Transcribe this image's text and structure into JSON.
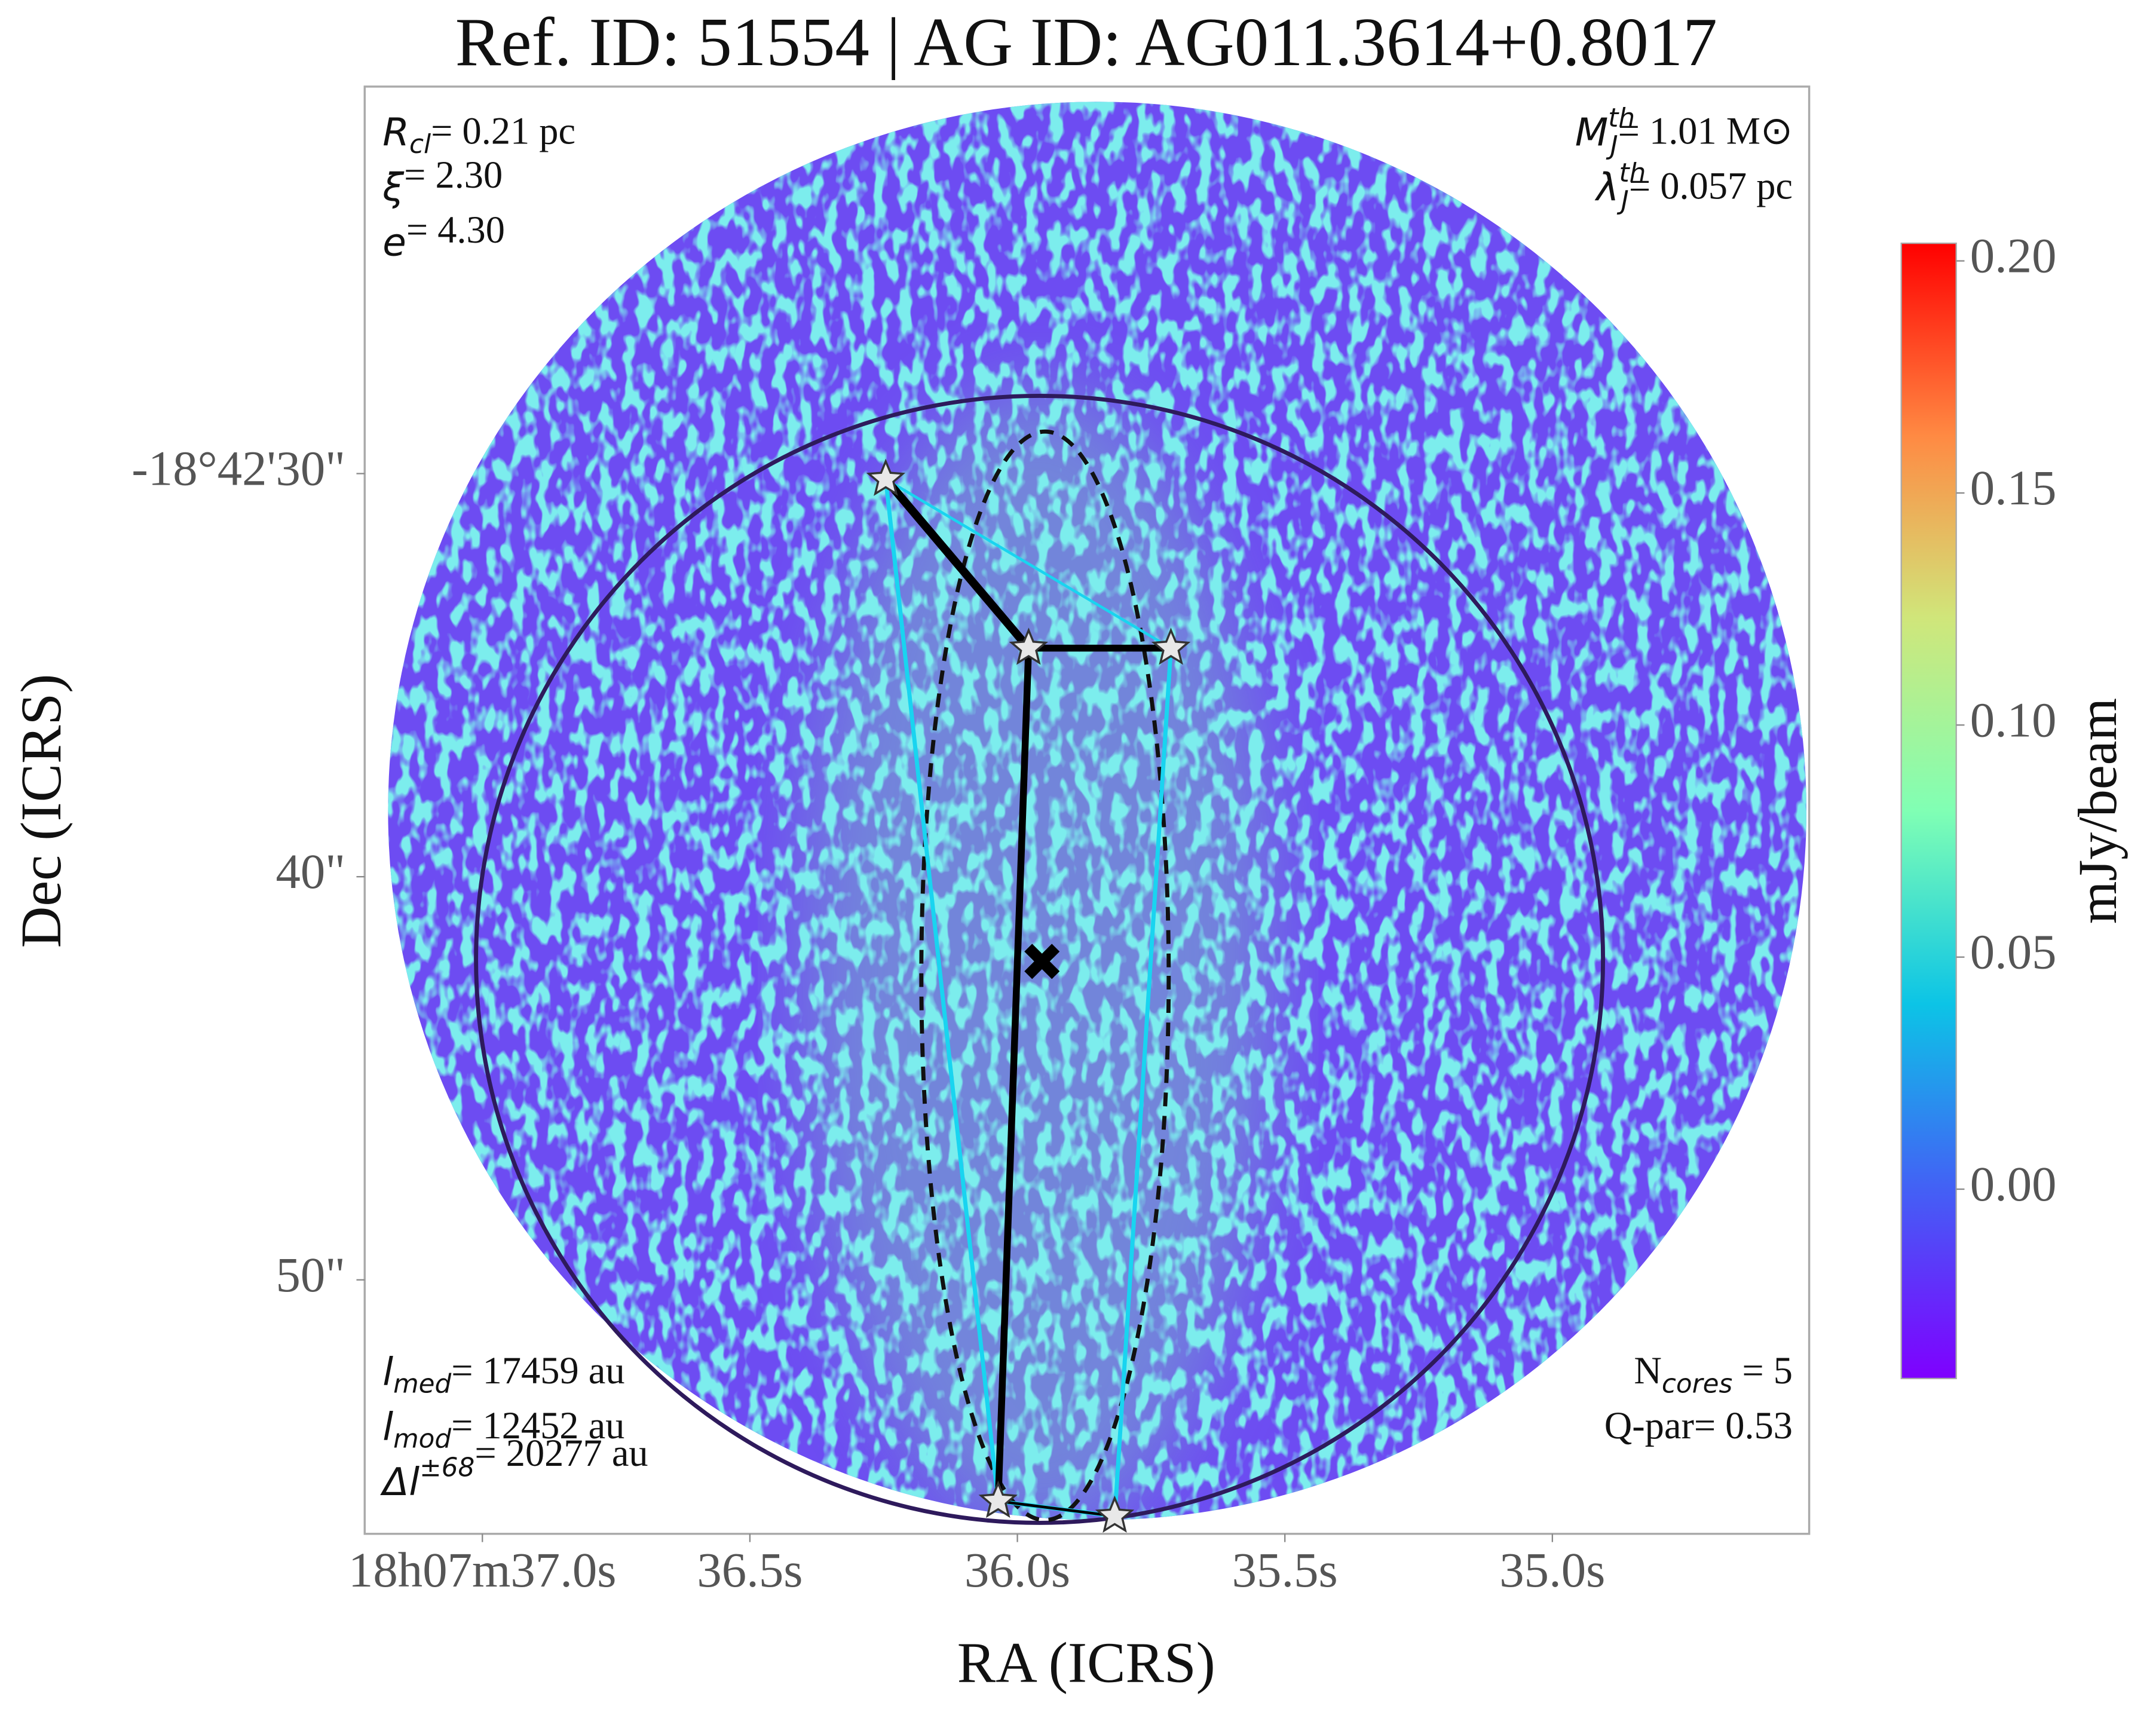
{
  "chart_data": {
    "type": "image",
    "title": "Ref. ID: 51554 | AG ID: AG011.3614+0.8017",
    "xlabel": "RA (ICRS)",
    "ylabel": "Dec (ICRS)",
    "xlim": [
      37.22,
      34.52
    ],
    "xticks": [
      {
        "value": 37.0,
        "label": "18h07m37.0s"
      },
      {
        "value": 36.5,
        "label": "36.5s"
      },
      {
        "value": 36.0,
        "label": "36.0s"
      },
      {
        "value": 35.5,
        "label": "35.5s"
      },
      {
        "value": 35.0,
        "label": "35.0s"
      }
    ],
    "ylim": [
      20.4,
      56.3
    ],
    "yticks": [
      {
        "value": 30,
        "label": "-18°42'30\""
      },
      {
        "value": 40,
        "label": "40\""
      },
      {
        "value": 50,
        "label": "50\""
      }
    ],
    "colorbar": {
      "label": "mJy/beam",
      "lim": [
        -0.0408,
        0.2038
      ],
      "ticks": [
        {
          "value": 0.2,
          "label": "0.20"
        },
        {
          "value": 0.15,
          "label": "0.15"
        },
        {
          "value": 0.1,
          "label": "0.10"
        },
        {
          "value": 0.05,
          "label": "0.05"
        },
        {
          "value": 0.0,
          "label": "0.00"
        }
      ]
    },
    "cores": {
      "x": [
        36.246,
        35.979,
        35.713,
        36.036,
        35.818
      ],
      "y": [
        30.14,
        34.33,
        34.33,
        55.49,
        55.86
      ]
    },
    "center": {
      "x": 35.954,
      "y": 42.1
    },
    "annotations": {
      "top_left": [
        {
          "sym": "R",
          "sub": "cl",
          "rest": "= 0.21 pc"
        },
        {
          "sym": "ξ",
          "rest": "= 2.30"
        },
        {
          "sym": "e",
          "rest": "= 4.30"
        }
      ],
      "top_right": [
        {
          "sym": "M",
          "sup": "th",
          "sub": "J",
          "rest": "= 1.01 M⊙"
        },
        {
          "sym": "λ",
          "sup": "th",
          "sub": "J",
          "rest": "= 0.057 pc"
        }
      ],
      "bottom_left": [
        {
          "sym": "l",
          "sub": "med",
          "rest": "= 17459 au"
        },
        {
          "sym": "l",
          "sub": "mod",
          "rest": "= 12452 au"
        },
        {
          "sym": "Δl",
          "sup": "±68",
          "rest": "= 20277 au"
        }
      ],
      "bottom_right": [
        {
          "rest": "N",
          "sub": "cores",
          "rest2": " = 5"
        },
        {
          "rest": "Q-par= 0.53"
        }
      ]
    }
  }
}
